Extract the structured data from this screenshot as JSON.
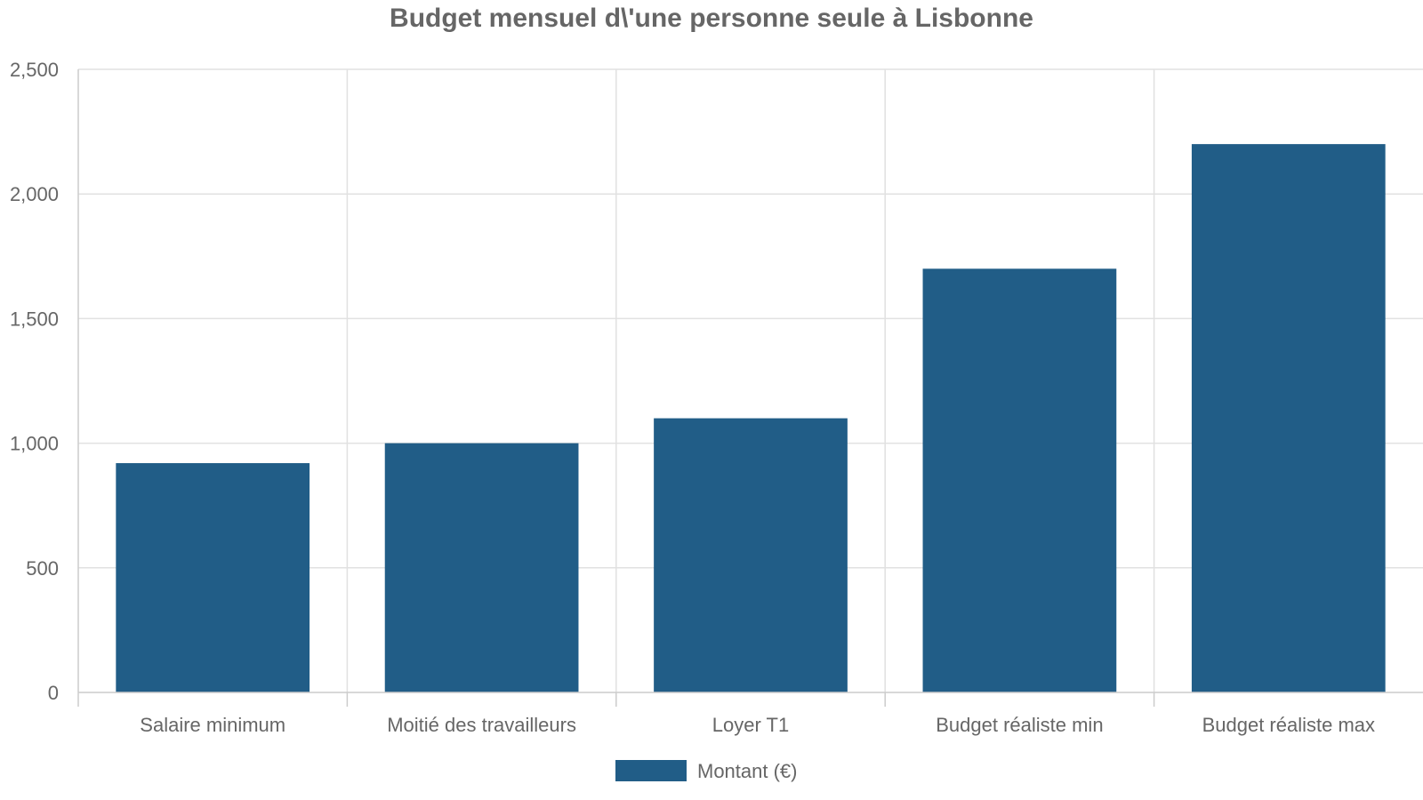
{
  "chart_data": {
    "type": "bar",
    "title": "Budget mensuel d\\'une personne seule à Lisbonne",
    "categories": [
      "Salaire minimum",
      "Moitié des travailleurs",
      "Loyer T1",
      "Budget réaliste min",
      "Budget réaliste max"
    ],
    "series": [
      {
        "name": "Montant (€)",
        "values": [
          920,
          1000,
          1100,
          1700,
          2200
        ],
        "color": "#215d87"
      }
    ],
    "ylim": [
      0,
      2500
    ],
    "y_ticks": [
      0,
      500,
      1000,
      1500,
      2000,
      2500
    ],
    "y_tick_labels": [
      "0",
      "500",
      "1,000",
      "1,500",
      "2,000",
      "2,500"
    ],
    "xlabel": "",
    "ylabel": "",
    "grid": true,
    "legend_position": "bottom-center"
  }
}
